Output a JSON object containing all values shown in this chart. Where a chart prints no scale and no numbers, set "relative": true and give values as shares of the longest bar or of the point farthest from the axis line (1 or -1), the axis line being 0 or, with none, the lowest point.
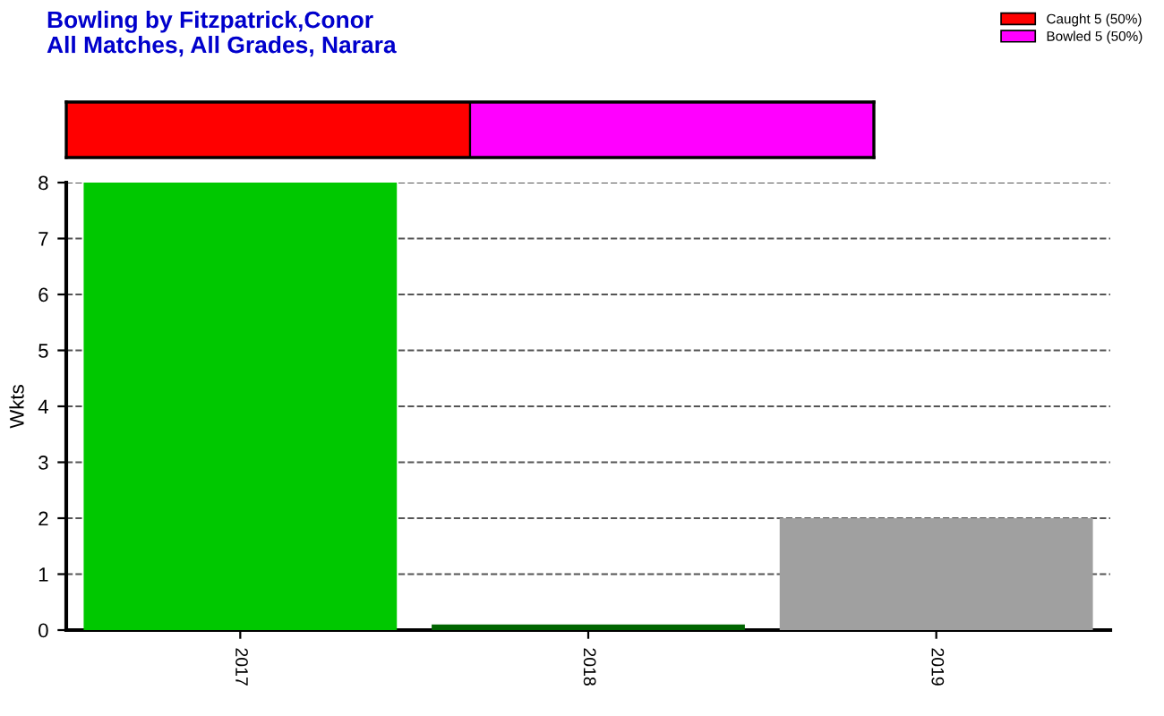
{
  "chart_data": [
    {
      "type": "bar",
      "orientation": "horizontal",
      "stacked": true,
      "relative": true,
      "title": "Bowling by Fitzpatrick,Conor",
      "subtitle": "All Matches, All Grades, Narara",
      "categories": [
        null
      ],
      "legend": "top right",
      "series": [
        {
          "name": "Caught 5 (50%)",
          "color": "#ff0000",
          "values": [
            0.5
          ]
        },
        {
          "name": "Bowled 5 (50%)",
          "color": "#ff00ff",
          "values": [
            0.5
          ]
        }
      ]
    },
    {
      "type": "bar",
      "categories": [
        "2017",
        "2018",
        "2019"
      ],
      "values": [
        8,
        0.1,
        2
      ],
      "colors": [
        "#00c800",
        "#006400",
        "#a0a0a0"
      ],
      "ylabel": "Wkts",
      "ylim": [
        0,
        8
      ],
      "yticks": [
        0,
        1,
        2,
        3,
        4,
        5,
        6,
        7,
        8
      ],
      "grid": "y",
      "line_style": "dashed"
    }
  ]
}
